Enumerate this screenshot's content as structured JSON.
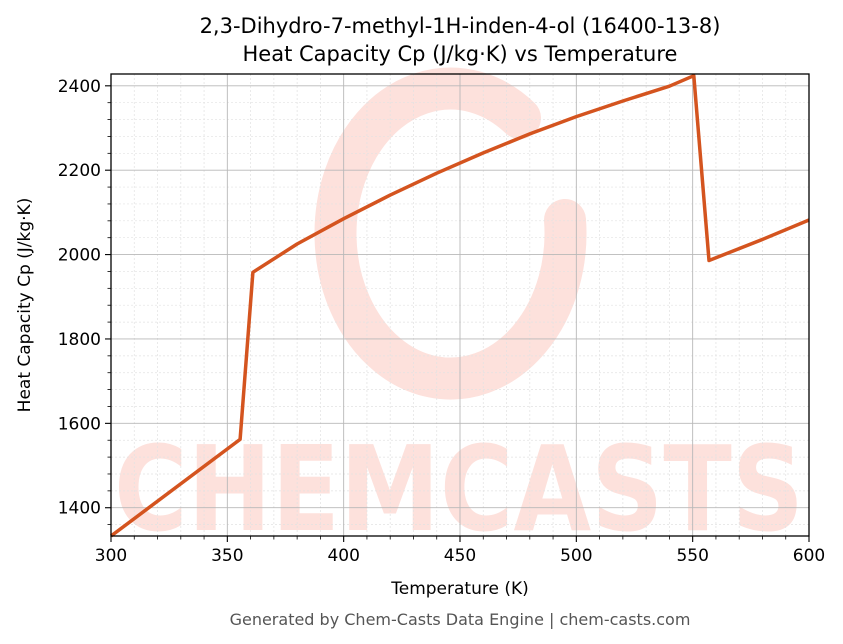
{
  "chart_data": {
    "type": "line",
    "title_line1": "2,3-Dihydro-7-methyl-1H-inden-4-ol (16400-13-8)",
    "title_line2": "Heat Capacity Cp (J/kg·K) vs Temperature",
    "xlabel": "Temperature (K)",
    "ylabel": "Heat Capacity Cp (J/kg·K)",
    "xlim": [
      300,
      600
    ],
    "ylim": [
      1333,
      2428
    ],
    "x_ticks": [
      300,
      350,
      400,
      450,
      500,
      550,
      600
    ],
    "y_ticks": [
      1400,
      1600,
      1800,
      2000,
      2200,
      2400
    ],
    "grid": true,
    "line_color": "#d4541f",
    "series": [
      {
        "x": [
          300,
          355.5,
          361,
          380,
          400,
          420,
          440,
          460,
          480,
          500,
          520,
          540,
          550.5,
          557,
          580,
          600
        ],
        "y": [
          1333,
          1562,
          1958,
          2025,
          2085,
          2141,
          2193,
          2241,
          2286,
          2327,
          2364,
          2399,
          2424,
          1986,
          2036,
          2082
        ]
      }
    ]
  },
  "watermark": {
    "text": "CHEMCASTS",
    "color": "#fde1dc"
  },
  "footer": "Generated by Chem-Casts Data Engine | chem-casts.com"
}
